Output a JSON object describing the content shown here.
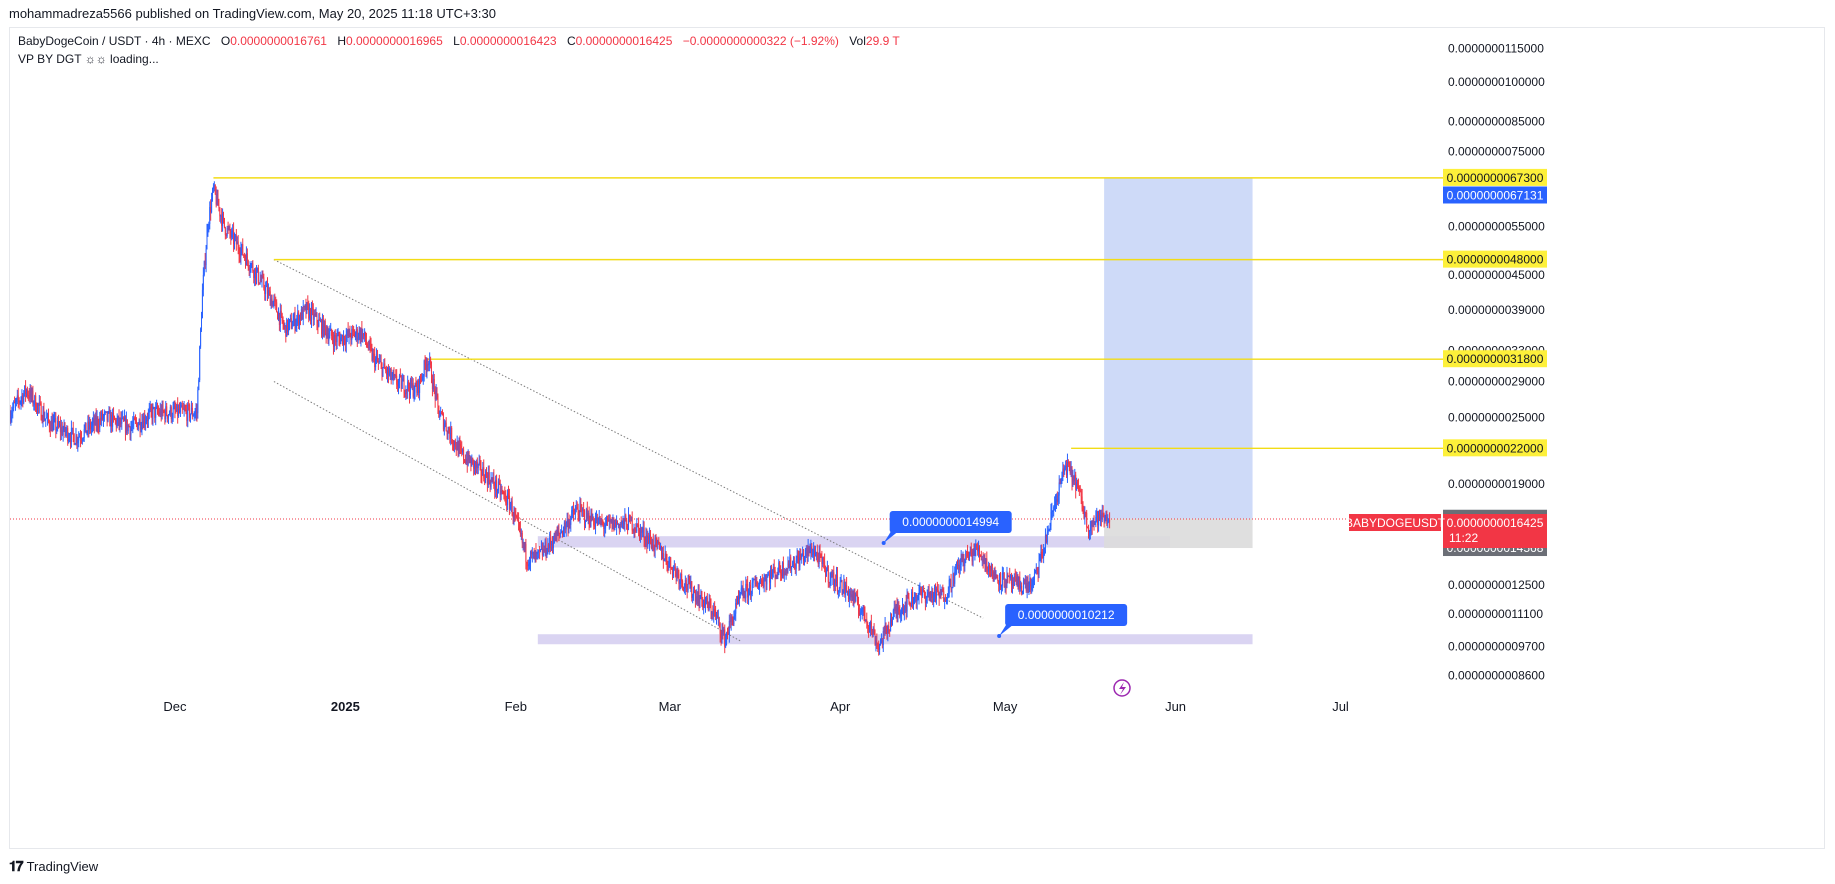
{
  "publisher": "mohammadreza5566 published on TradingView.com, May 20, 2025 11:18 UTC+3:30",
  "legend": {
    "symbol": "BabyDogeCoin / USDT · 4h · MEXC",
    "open_label": "O",
    "open": "0.0000000016761",
    "high_label": "H",
    "high": "0.0000000016965",
    "low_label": "L",
    "low": "0.0000000016423",
    "close_label": "C",
    "close": "0.0000000016425",
    "change": "−0.0000000000322 (−1.92%)",
    "vol_label": "Vol",
    "vol": "29.9 T"
  },
  "indicator": "VP BY DGT ☼☼ loading...",
  "footer": {
    "brand": "TradingView"
  },
  "colors": {
    "up": "#2962ff",
    "down": "#f23645",
    "level": "#f5e32a",
    "zone": "#d4cdf0",
    "target": "#c5d4f7",
    "stop": "#dcdcdc",
    "callout": "#2962ff",
    "price": "#f23645",
    "grey_badge": "#6b6e76",
    "blue_badge": "#2962ff"
  },
  "chart_data": {
    "type": "candlestick",
    "symbol": "BABYDOGEUSDT",
    "interval": "4h",
    "y_scale": "log",
    "ylim": [
      8e-10,
      1.2e-08
    ],
    "x_ticks": [
      "Dec",
      "2025",
      "Feb",
      "Mar",
      "Apr",
      "May",
      "Jun",
      "Jul"
    ],
    "x_tick_dates": [
      "2024-12-01",
      "2025-01-01",
      "2025-02-01",
      "2025-03-01",
      "2025-04-01",
      "2025-05-01",
      "2025-06-01",
      "2025-07-01"
    ],
    "y_ticks": [
      "0.0000000115000",
      "0.0000000100000",
      "0.0000000085000",
      "0.0000000075000",
      "0.0000000055000",
      "0.0000000045000",
      "0.0000000039000",
      "0.0000000033000",
      "0.0000000029000",
      "0.0000000025000",
      "0.0000000019000",
      "0.0000000012500",
      "0.0000000011100",
      "0.0000000009700",
      "0.0000000008600"
    ],
    "y_tick_values": [
      1.15e-08,
      1e-08,
      8.5e-09,
      7.5e-09,
      5.5e-09,
      4.5e-09,
      3.9e-09,
      3.3e-09,
      2.9e-09,
      2.5e-09,
      1.9e-09,
      1.25e-09,
      1.11e-09,
      9.7e-10,
      8.6e-10
    ],
    "price_path": [
      {
        "date": "2024-11-01",
        "price": 2.55e-09
      },
      {
        "date": "2024-11-04",
        "price": 2.8e-09
      },
      {
        "date": "2024-11-08",
        "price": 2.45e-09
      },
      {
        "date": "2024-11-13",
        "price": 2.3e-09
      },
      {
        "date": "2024-11-18",
        "price": 2.5e-09
      },
      {
        "date": "2024-11-23",
        "price": 2.4e-09
      },
      {
        "date": "2024-11-27",
        "price": 2.55e-09
      },
      {
        "date": "2024-12-01",
        "price": 2.55e-09
      },
      {
        "date": "2024-12-05",
        "price": 2.55e-09
      },
      {
        "date": "2024-12-06",
        "price": 4.2e-09
      },
      {
        "date": "2024-12-07",
        "price": 5.6e-09
      },
      {
        "date": "2024-12-08",
        "price": 6.4e-09
      },
      {
        "date": "2024-12-10",
        "price": 5.5e-09
      },
      {
        "date": "2024-12-13",
        "price": 5e-09
      },
      {
        "date": "2024-12-16",
        "price": 4.5e-09
      },
      {
        "date": "2024-12-19",
        "price": 4e-09
      },
      {
        "date": "2024-12-21",
        "price": 3.6e-09
      },
      {
        "date": "2024-12-25",
        "price": 3.9e-09
      },
      {
        "date": "2024-12-30",
        "price": 3.45e-09
      },
      {
        "date": "2025-01-04",
        "price": 3.55e-09
      },
      {
        "date": "2025-01-06",
        "price": 3.2e-09
      },
      {
        "date": "2025-01-10",
        "price": 2.9e-09
      },
      {
        "date": "2025-01-14",
        "price": 2.8e-09
      },
      {
        "date": "2025-01-16",
        "price": 3.2e-09
      },
      {
        "date": "2025-01-18",
        "price": 2.55e-09
      },
      {
        "date": "2025-01-22",
        "price": 2.15e-09
      },
      {
        "date": "2025-01-27",
        "price": 1.95e-09
      },
      {
        "date": "2025-01-31",
        "price": 1.75e-09
      },
      {
        "date": "2025-02-03",
        "price": 1.4e-09
      },
      {
        "date": "2025-02-05",
        "price": 1.4e-09
      },
      {
        "date": "2025-02-09",
        "price": 1.55e-09
      },
      {
        "date": "2025-02-12",
        "price": 1.7e-09
      },
      {
        "date": "2025-02-17",
        "price": 1.6e-09
      },
      {
        "date": "2025-02-22",
        "price": 1.62e-09
      },
      {
        "date": "2025-02-27",
        "price": 1.45e-09
      },
      {
        "date": "2025-03-04",
        "price": 1.25e-09
      },
      {
        "date": "2025-03-09",
        "price": 1.12e-09
      },
      {
        "date": "2025-03-11",
        "price": 1e-09
      },
      {
        "date": "2025-03-14",
        "price": 1.2e-09
      },
      {
        "date": "2025-03-19",
        "price": 1.3e-09
      },
      {
        "date": "2025-03-24",
        "price": 1.38e-09
      },
      {
        "date": "2025-03-27",
        "price": 1.45e-09
      },
      {
        "date": "2025-03-30",
        "price": 1.3e-09
      },
      {
        "date": "2025-04-03",
        "price": 1.2e-09
      },
      {
        "date": "2025-04-06",
        "price": 1.08e-09
      },
      {
        "date": "2025-04-08",
        "price": 9.7e-10
      },
      {
        "date": "2025-04-11",
        "price": 1.12e-09
      },
      {
        "date": "2025-04-15",
        "price": 1.2e-09
      },
      {
        "date": "2025-04-20",
        "price": 1.2e-09
      },
      {
        "date": "2025-04-23",
        "price": 1.38e-09
      },
      {
        "date": "2025-04-26",
        "price": 1.45e-09
      },
      {
        "date": "2025-04-29",
        "price": 1.3e-09
      },
      {
        "date": "2025-05-03",
        "price": 1.25e-09
      },
      {
        "date": "2025-05-06",
        "price": 1.25e-09
      },
      {
        "date": "2025-05-08",
        "price": 1.45e-09
      },
      {
        "date": "2025-05-10",
        "price": 1.75e-09
      },
      {
        "date": "2025-05-12",
        "price": 2.05e-09
      },
      {
        "date": "2025-05-14",
        "price": 1.9e-09
      },
      {
        "date": "2025-05-16",
        "price": 1.6e-09
      },
      {
        "date": "2025-05-18",
        "price": 1.65e-09
      },
      {
        "date": "2025-05-20",
        "price": 1.6425e-09
      }
    ],
    "horizontal_levels": [
      {
        "label": "0.0000000067300",
        "value": 6.73e-09,
        "from": "2024-12-08"
      },
      {
        "label": "0.0000000048000",
        "value": 4.8e-09,
        "from": "2024-12-19"
      },
      {
        "label": "0.0000000031800",
        "value": 3.18e-09,
        "from": "2025-01-16"
      },
      {
        "label": "0.0000000022000",
        "value": 2.2e-09,
        "from": "2025-05-13"
      }
    ],
    "zones": [
      {
        "from": "2025-02-05",
        "to": "2025-05-31",
        "low": 1.46e-09,
        "high": 1.53e-09
      },
      {
        "from": "2025-02-05",
        "to": "2025-06-15",
        "low": 9.8e-10,
        "high": 1.02e-09
      }
    ],
    "channel": [
      {
        "from_date": "2024-12-19",
        "from_price": 4.8e-09,
        "to_date": "2025-04-27",
        "to_price": 1.09e-09
      },
      {
        "from_date": "2024-12-19",
        "from_price": 2.9e-09,
        "to_date": "2025-03-14",
        "to_price": 9.9e-10
      }
    ],
    "callouts": [
      {
        "label": "0.0000000014994",
        "value": 1.4994e-09,
        "date": "2025-04-10"
      },
      {
        "label": "0.0000000010212",
        "value": 1.0212e-09,
        "date": "2025-05-01"
      }
    ],
    "long_position": {
      "from": "2025-05-19",
      "to": "2025-06-15",
      "entry": 1.6443e-09,
      "target": 6.7131e-09,
      "stop": 1.4568e-09
    },
    "price_badges": [
      {
        "label": "0.0000000067300",
        "value": 6.73e-09,
        "style": "yellow"
      },
      {
        "label": "0.0000000067131",
        "value": 6.7131e-09,
        "style": "blue"
      },
      {
        "label": "0.0000000048000",
        "value": 4.8e-09,
        "style": "yellow"
      },
      {
        "label": "0.0000000031800",
        "value": 3.18e-09,
        "style": "yellow"
      },
      {
        "label": "0.0000000022000",
        "value": 2.2e-09,
        "style": "yellow"
      },
      {
        "label": "0.0000000016443",
        "value": 1.6443e-09,
        "style": "grey"
      },
      {
        "label": "0.0000000014568",
        "value": 1.4568e-09,
        "style": "grey"
      }
    ],
    "current_price": {
      "symbol_label": "BABYDOGEUSDT",
      "label": "0.0000000016425",
      "value": 1.6425e-09,
      "countdown": "11:22"
    }
  }
}
